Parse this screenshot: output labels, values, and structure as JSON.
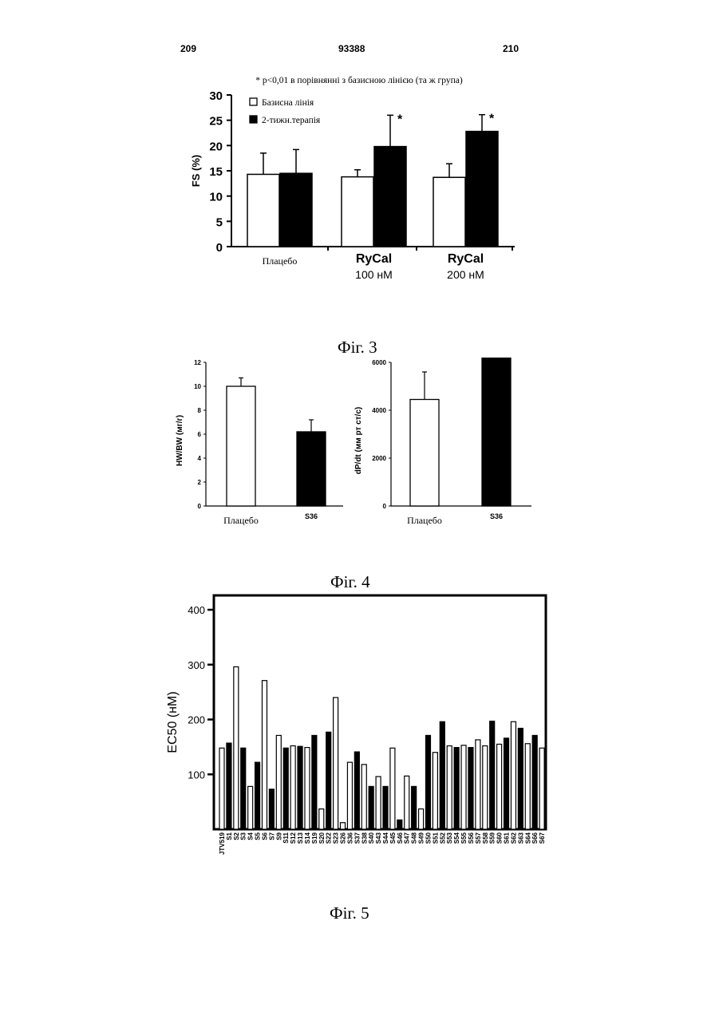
{
  "header": {
    "left": "209",
    "center": "93388",
    "right": "210"
  },
  "fig3": {
    "caption": "Фіг. 3",
    "note": "* p<0,01 в порівнянні з базисною лінією (та ж група)",
    "chart_data": {
      "type": "bar",
      "ylabel": "FS (%)",
      "ylim": [
        0,
        30
      ],
      "yticks": [
        "0",
        "5",
        "10",
        "15",
        "20",
        "25",
        "30"
      ],
      "categories": [
        "Плацебо",
        "RyCal 100 нМ",
        "RyCal 200 нМ"
      ],
      "category_lines": [
        [
          "Плацебо",
          ""
        ],
        [
          "RyCal",
          "100 нМ"
        ],
        [
          "RyCal",
          "200 нМ"
        ]
      ],
      "series": [
        {
          "name": "Базисна лінія",
          "values": [
            14.3,
            13.8,
            13.7
          ],
          "errors": [
            4.2,
            1.4,
            2.7
          ],
          "fill": "white"
        },
        {
          "name": "2-тижн.терапія",
          "values": [
            14.5,
            19.8,
            22.8
          ],
          "errors": [
            4.7,
            6.2,
            3.3
          ],
          "fill": "black"
        }
      ],
      "significance": [
        "",
        "*",
        "*"
      ],
      "legend": "top-left"
    }
  },
  "fig4": {
    "caption": "Фіг. 4",
    "chart_data": [
      {
        "type": "bar",
        "ylabel": "HW/BW (мг/г)",
        "ylim": [
          0,
          12
        ],
        "yticks": [
          "0",
          "2",
          "4",
          "6",
          "8",
          "10",
          "12"
        ],
        "categories": [
          "Плацебо",
          "S36"
        ],
        "values": [
          10.0,
          6.2
        ],
        "errors": [
          0.7,
          1.0
        ]
      },
      {
        "type": "bar",
        "ylabel": "dP/dt (мм рт ст/с)",
        "ylim": [
          0,
          6000
        ],
        "yticks": [
          "0",
          "2000",
          "4000",
          "6000"
        ],
        "categories": [
          "Плацебо",
          "S36"
        ],
        "values": [
          4450,
          6550
        ],
        "errors": [
          1150,
          700
        ]
      }
    ]
  },
  "fig5": {
    "caption": "Фіг. 5",
    "chart_data": {
      "type": "bar",
      "ylabel": "EC50 (нМ)",
      "ylim": [
        0,
        400
      ],
      "yticks": [
        "100",
        "200",
        "300",
        "400"
      ],
      "categories": [
        "JTV519",
        "S1",
        "S2",
        "S3",
        "S4",
        "S5",
        "S6",
        "S7",
        "S9",
        "S11",
        "S12",
        "S13",
        "S14",
        "S19",
        "S20",
        "S22",
        "S23",
        "S26",
        "S36",
        "S37",
        "S38",
        "S40",
        "S43",
        "S44",
        "S45",
        "S46",
        "S47",
        "S48",
        "S49",
        "S50",
        "S51",
        "S52",
        "S53",
        "S54",
        "S55",
        "S56",
        "S57",
        "S58",
        "S59",
        "S60",
        "S61",
        "S62",
        "S63",
        "S64",
        "S66",
        "S67"
      ],
      "values": [
        148,
        157,
        296,
        148,
        78,
        122,
        271,
        73,
        171,
        148,
        152,
        151,
        149,
        171,
        37,
        177,
        240,
        12,
        122,
        141,
        118,
        78,
        96,
        78,
        148,
        17,
        97,
        78,
        37,
        171,
        140,
        196,
        152,
        149,
        153,
        149,
        163,
        152,
        197,
        155,
        166,
        196,
        184,
        156,
        171,
        148
      ],
      "fills": [
        "white",
        "black",
        "white",
        "black",
        "white",
        "black",
        "white",
        "black",
        "white",
        "black",
        "white",
        "black",
        "white",
        "black",
        "white",
        "black",
        "white",
        "white",
        "white",
        "black",
        "white",
        "black",
        "white",
        "black",
        "white",
        "black",
        "white",
        "black",
        "white",
        "black",
        "white",
        "black",
        "white",
        "black",
        "white",
        "black",
        "white",
        "white",
        "black",
        "white",
        "black",
        "white",
        "black",
        "white",
        "black",
        "white"
      ]
    }
  }
}
